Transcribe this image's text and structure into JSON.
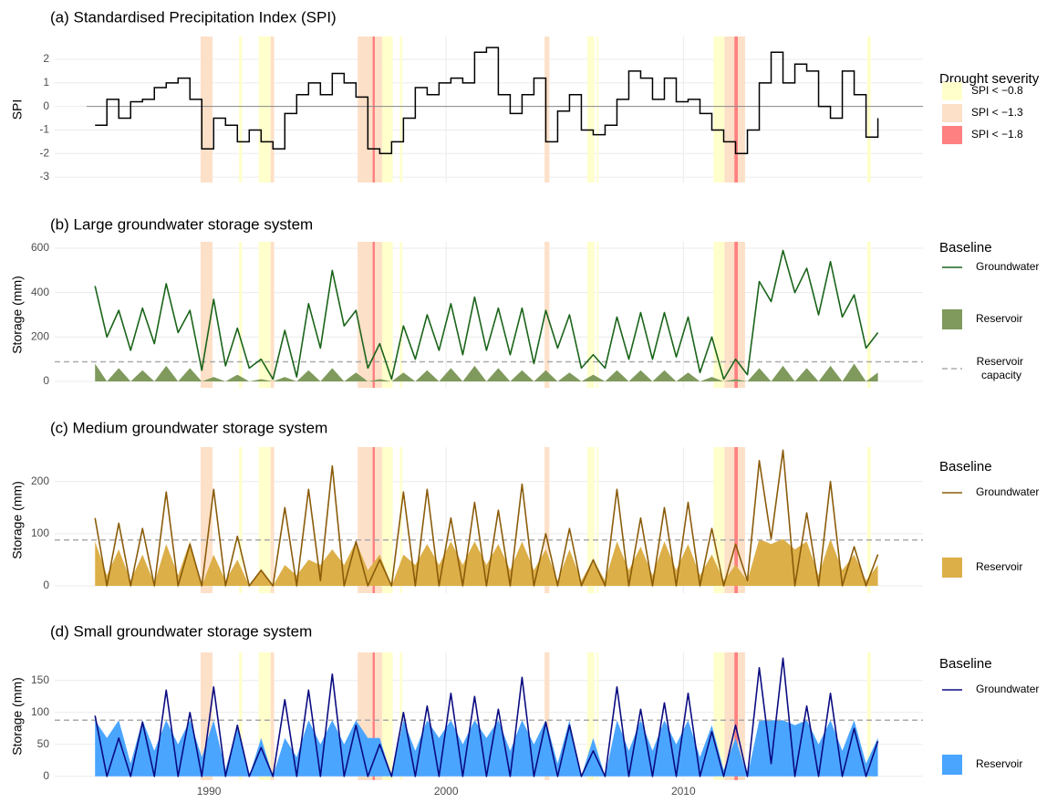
{
  "chart_data": [
    {
      "type": "step",
      "title": "(a) Standardised Precipitation Index (SPI)",
      "ylabel": "SPI",
      "x": [
        1985.2,
        1985.7,
        1986.2,
        1986.7,
        1987.2,
        1987.7,
        1988.2,
        1988.7,
        1989.2,
        1989.7,
        1990.2,
        1990.7,
        1991.2,
        1991.7,
        1992.2,
        1992.7,
        1993.2,
        1993.7,
        1994.2,
        1994.7,
        1995.2,
        1995.7,
        1996.2,
        1996.7,
        1997.2,
        1997.7,
        1998.2,
        1998.7,
        1999.2,
        1999.7,
        2000.2,
        2000.7,
        2001.2,
        2001.7,
        2002.2,
        2002.7,
        2003.2,
        2003.7,
        2004.2,
        2004.7,
        2005.2,
        2005.7,
        2006.2,
        2006.7,
        2007.2,
        2007.7,
        2008.2,
        2008.7,
        2009.2,
        2009.7,
        2010.2,
        2010.7,
        2011.2,
        2011.7,
        2012.2,
        2012.7,
        2013.2,
        2013.7,
        2014.2,
        2014.7,
        2015.2,
        2015.7,
        2016.2,
        2016.7,
        2017.2,
        2017.7,
        2018.2
      ],
      "series": [
        {
          "name": "SPI",
          "color": "#000000",
          "values": [
            -0.8,
            0.3,
            -0.5,
            0.2,
            0.3,
            0.8,
            1.0,
            1.2,
            0.3,
            -1.8,
            -0.5,
            -0.8,
            -1.5,
            -1.0,
            -1.5,
            -1.8,
            -0.3,
            0.5,
            1.0,
            0.5,
            1.4,
            1.0,
            0.4,
            -1.8,
            -2.0,
            -1.5,
            -0.5,
            0.8,
            0.5,
            1.0,
            1.2,
            1.0,
            2.3,
            2.5,
            0.5,
            -0.3,
            0.5,
            1.2,
            -1.5,
            -0.2,
            0.5,
            -1.0,
            -1.2,
            -0.8,
            0.3,
            1.5,
            1.2,
            0.3,
            1.2,
            0.2,
            0.3,
            -0.3,
            -1.0,
            -1.5,
            -2.0,
            -1.0,
            1.0,
            2.3,
            1.0,
            1.8,
            1.5,
            0.0,
            -0.5,
            1.5,
            0.5,
            -1.3,
            -0.5
          ]
        }
      ],
      "xlim": [
        1983.5,
        2020.1
      ],
      "ylim": [
        -3.23,
        2.97
      ],
      "yticks": [
        -3,
        -2,
        -1,
        0,
        1,
        2
      ],
      "zero_line": 0,
      "legend_title": "Drought severity",
      "severity_levels": [
        {
          "label": "SPI < −0.8",
          "color": "#ffffcc"
        },
        {
          "label": "SPI < −1.3",
          "color": "#fde0c8"
        },
        {
          "label": "SPI < −1.8",
          "color": "#ff8080"
        }
      ],
      "droughts": [
        {
          "start": 1989.65,
          "end": 1990.15,
          "severity": 1
        },
        {
          "start": 1991.27,
          "end": 1991.4,
          "severity": 0
        },
        {
          "start": 1992.1,
          "end": 1992.6,
          "severity": 0
        },
        {
          "start": 1992.6,
          "end": 1992.75,
          "severity": 1
        },
        {
          "start": 1996.27,
          "end": 1996.9,
          "severity": 1
        },
        {
          "start": 1996.9,
          "end": 1997.0,
          "severity": 2
        },
        {
          "start": 1997.0,
          "end": 1997.3,
          "severity": 1
        },
        {
          "start": 1997.3,
          "end": 1997.75,
          "severity": 0
        },
        {
          "start": 1998.05,
          "end": 1998.15,
          "severity": 0
        },
        {
          "start": 2004.15,
          "end": 2004.35,
          "severity": 1
        },
        {
          "start": 2005.95,
          "end": 2006.25,
          "severity": 0
        },
        {
          "start": 2006.35,
          "end": 2006.42,
          "severity": 0
        },
        {
          "start": 2011.27,
          "end": 2011.73,
          "severity": 0
        },
        {
          "start": 2011.73,
          "end": 2012.15,
          "severity": 1
        },
        {
          "start": 2012.15,
          "end": 2012.3,
          "severity": 2
        },
        {
          "start": 2012.3,
          "end": 2012.6,
          "severity": 1
        },
        {
          "start": 2017.75,
          "end": 2017.9,
          "severity": 0
        }
      ]
    },
    {
      "type": "line",
      "title": "(b) Large groundwater storage system",
      "ylabel": "Storage (mm)",
      "x": [
        1985.2,
        1985.7,
        1986.2,
        1986.7,
        1987.2,
        1987.7,
        1988.2,
        1988.7,
        1989.2,
        1989.7,
        1990.2,
        1990.7,
        1991.2,
        1991.7,
        1992.2,
        1992.7,
        1993.2,
        1993.7,
        1994.2,
        1994.7,
        1995.2,
        1995.7,
        1996.2,
        1996.7,
        1997.2,
        1997.7,
        1998.2,
        1998.7,
        1999.2,
        1999.7,
        2000.2,
        2000.7,
        2001.2,
        2001.7,
        2002.2,
        2002.7,
        2003.2,
        2003.7,
        2004.2,
        2004.7,
        2005.2,
        2005.7,
        2006.2,
        2006.7,
        2007.2,
        2007.7,
        2008.2,
        2008.7,
        2009.2,
        2009.7,
        2010.2,
        2010.7,
        2011.2,
        2011.7,
        2012.2,
        2012.7,
        2013.2,
        2013.7,
        2014.2,
        2014.7,
        2015.2,
        2015.7,
        2016.2,
        2016.7,
        2017.2,
        2017.7,
        2018.2
      ],
      "series": [
        {
          "name": "Groundwater",
          "color": "#1a641a",
          "kind": "line",
          "values": [
            430,
            200,
            320,
            140,
            330,
            170,
            440,
            220,
            320,
            50,
            370,
            70,
            240,
            60,
            100,
            10,
            230,
            20,
            350,
            150,
            500,
            250,
            320,
            60,
            170,
            10,
            250,
            100,
            300,
            140,
            350,
            120,
            380,
            140,
            330,
            120,
            330,
            80,
            320,
            150,
            300,
            60,
            120,
            60,
            290,
            100,
            310,
            100,
            310,
            110,
            290,
            40,
            200,
            10,
            100,
            30,
            450,
            360,
            590,
            400,
            510,
            300,
            540,
            290,
            390,
            150,
            220
          ]
        },
        {
          "name": "Reservoir",
          "color": "#7f9a5c",
          "kind": "area",
          "values": [
            80,
            0,
            60,
            0,
            50,
            0,
            70,
            0,
            60,
            0,
            20,
            0,
            30,
            0,
            10,
            0,
            20,
            0,
            50,
            0,
            60,
            0,
            40,
            0,
            10,
            0,
            40,
            0,
            50,
            0,
            60,
            0,
            70,
            0,
            60,
            0,
            50,
            0,
            50,
            0,
            40,
            0,
            30,
            0,
            50,
            0,
            50,
            0,
            50,
            0,
            40,
            0,
            20,
            0,
            10,
            0,
            60,
            0,
            70,
            0,
            60,
            0,
            70,
            0,
            80,
            0,
            40
          ]
        }
      ],
      "xlim": [
        1983.5,
        2020.1
      ],
      "ylim": [
        -29,
        629
      ],
      "yticks": [
        0,
        200,
        400,
        600
      ],
      "capacity": 88,
      "capacity_label": "Reservoir capacity",
      "legend_title": "Baseline"
    },
    {
      "type": "line",
      "title": "(c) Medium groundwater storage system",
      "ylabel": "Storage (mm)",
      "x": [
        1985.2,
        1985.7,
        1986.2,
        1986.7,
        1987.2,
        1987.7,
        1988.2,
        1988.7,
        1989.2,
        1989.7,
        1990.2,
        1990.7,
        1991.2,
        1991.7,
        1992.2,
        1992.7,
        1993.2,
        1993.7,
        1994.2,
        1994.7,
        1995.2,
        1995.7,
        1996.2,
        1996.7,
        1997.2,
        1997.7,
        1998.2,
        1998.7,
        1999.2,
        1999.7,
        2000.2,
        2000.7,
        2001.2,
        2001.7,
        2002.2,
        2002.7,
        2003.2,
        2003.7,
        2004.2,
        2004.7,
        2005.2,
        2005.7,
        2006.2,
        2006.7,
        2007.2,
        2007.7,
        2008.2,
        2008.7,
        2009.2,
        2009.7,
        2010.2,
        2010.7,
        2011.2,
        2011.7,
        2012.2,
        2012.7,
        2013.2,
        2013.7,
        2014.2,
        2014.7,
        2015.2,
        2015.7,
        2016.2,
        2016.7,
        2017.2,
        2017.7,
        2018.2
      ],
      "series": [
        {
          "name": "Groundwater",
          "color": "#8a5c0a",
          "kind": "line",
          "values": [
            130,
            0,
            120,
            0,
            110,
            0,
            180,
            0,
            80,
            0,
            185,
            0,
            95,
            0,
            30,
            0,
            150,
            0,
            185,
            10,
            230,
            0,
            85,
            0,
            50,
            0,
            180,
            0,
            185,
            0,
            130,
            0,
            160,
            0,
            145,
            0,
            195,
            0,
            100,
            0,
            110,
            0,
            50,
            0,
            185,
            0,
            130,
            0,
            150,
            0,
            160,
            0,
            110,
            0,
            80,
            10,
            240,
            90,
            260,
            0,
            140,
            0,
            200,
            0,
            75,
            0,
            60
          ]
        },
        {
          "name": "Reservoir",
          "color": "#dcaf48",
          "kind": "area",
          "values": [
            85,
            20,
            70,
            10,
            60,
            5,
            80,
            20,
            85,
            0,
            60,
            10,
            50,
            0,
            30,
            0,
            40,
            20,
            50,
            40,
            70,
            40,
            85,
            30,
            60,
            0,
            60,
            40,
            80,
            40,
            85,
            40,
            85,
            40,
            80,
            30,
            85,
            30,
            70,
            10,
            70,
            10,
            50,
            10,
            85,
            30,
            75,
            20,
            85,
            30,
            80,
            20,
            60,
            10,
            40,
            10,
            90,
            80,
            90,
            70,
            85,
            20,
            90,
            30,
            60,
            10,
            40
          ]
        }
      ],
      "xlim": [
        1983.5,
        2020.1
      ],
      "ylim": [
        -14,
        266
      ],
      "yticks": [
        0,
        100,
        200
      ],
      "capacity": 88,
      "legend_title": "Baseline"
    },
    {
      "type": "line",
      "title": "(d) Small groundwater storage system",
      "ylabel": "Storage (mm)",
      "x": [
        1985.2,
        1985.7,
        1986.2,
        1986.7,
        1987.2,
        1987.7,
        1988.2,
        1988.7,
        1989.2,
        1989.7,
        1990.2,
        1990.7,
        1991.2,
        1991.7,
        1992.2,
        1992.7,
        1993.2,
        1993.7,
        1994.2,
        1994.7,
        1995.2,
        1995.7,
        1996.2,
        1996.7,
        1997.2,
        1997.7,
        1998.2,
        1998.7,
        1999.2,
        1999.7,
        2000.2,
        2000.7,
        2001.2,
        2001.7,
        2002.2,
        2002.7,
        2003.2,
        2003.7,
        2004.2,
        2004.7,
        2005.2,
        2005.7,
        2006.2,
        2006.7,
        2007.2,
        2007.7,
        2008.2,
        2008.7,
        2009.2,
        2009.7,
        2010.2,
        2010.7,
        2011.2,
        2011.7,
        2012.2,
        2012.7,
        2013.2,
        2013.7,
        2014.2,
        2014.7,
        2015.2,
        2015.7,
        2016.2,
        2016.7,
        2017.2,
        2017.7,
        2018.2
      ],
      "series": [
        {
          "name": "Groundwater",
          "color": "#0b0b82",
          "kind": "line",
          "values": [
            95,
            0,
            60,
            0,
            85,
            0,
            135,
            0,
            100,
            0,
            140,
            0,
            80,
            0,
            45,
            0,
            120,
            0,
            135,
            0,
            160,
            0,
            80,
            0,
            50,
            0,
            100,
            0,
            110,
            0,
            130,
            0,
            125,
            0,
            105,
            0,
            155,
            0,
            85,
            0,
            80,
            0,
            40,
            0,
            140,
            0,
            105,
            0,
            115,
            0,
            130,
            0,
            70,
            0,
            80,
            0,
            170,
            20,
            185,
            0,
            110,
            0,
            130,
            0,
            75,
            0,
            55
          ]
        },
        {
          "name": "Reservoir",
          "color": "#4aa5ff",
          "kind": "area",
          "values": [
            88,
            60,
            88,
            20,
            88,
            40,
            88,
            50,
            88,
            30,
            88,
            10,
            80,
            0,
            60,
            0,
            60,
            30,
            88,
            50,
            88,
            50,
            88,
            60,
            60,
            0,
            88,
            40,
            88,
            60,
            88,
            50,
            88,
            60,
            88,
            40,
            88,
            50,
            88,
            20,
            88,
            0,
            60,
            0,
            88,
            40,
            88,
            40,
            88,
            50,
            88,
            30,
            80,
            10,
            60,
            0,
            88,
            88,
            88,
            80,
            88,
            50,
            88,
            40,
            88,
            20,
            60
          ]
        }
      ],
      "xlim": [
        1983.5,
        2020.1
      ],
      "ylim": [
        -6,
        194
      ],
      "yticks": [
        0,
        50,
        100,
        150
      ],
      "xticks": [
        1990,
        2000,
        2010
      ],
      "capacity": 88,
      "legend_title": "Baseline"
    }
  ]
}
